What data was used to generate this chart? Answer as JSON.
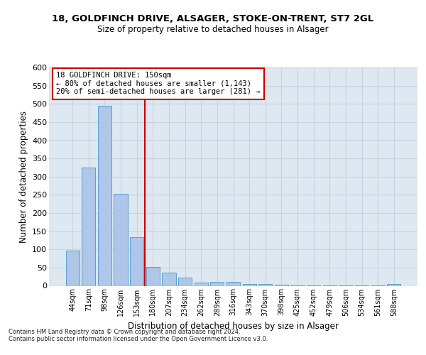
{
  "title1": "18, GOLDFINCH DRIVE, ALSAGER, STOKE-ON-TRENT, ST7 2GL",
  "title2": "Size of property relative to detached houses in Alsager",
  "xlabel": "Distribution of detached houses by size in Alsager",
  "ylabel": "Number of detached properties",
  "categories": [
    "44sqm",
    "71sqm",
    "98sqm",
    "126sqm",
    "153sqm",
    "180sqm",
    "207sqm",
    "234sqm",
    "262sqm",
    "289sqm",
    "316sqm",
    "343sqm",
    "370sqm",
    "398sqm",
    "425sqm",
    "452sqm",
    "479sqm",
    "506sqm",
    "534sqm",
    "561sqm",
    "588sqm"
  ],
  "values": [
    97,
    325,
    495,
    252,
    134,
    52,
    36,
    23,
    9,
    11,
    11,
    5,
    5,
    2,
    1,
    1,
    1,
    1,
    1,
    1,
    5
  ],
  "bar_color": "#aec6e8",
  "bar_edge_color": "#5a9fd4",
  "redline_x": 4.5,
  "annotation_text": "18 GOLDFINCH DRIVE: 150sqm\n← 80% of detached houses are smaller (1,143)\n20% of semi-detached houses are larger (281) →",
  "annotation_box_color": "#ffffff",
  "annotation_box_edge": "#cc0000",
  "redline_color": "#cc0000",
  "grid_color": "#c8d4e0",
  "background_color": "#dde8f0",
  "footer_text": "Contains HM Land Registry data © Crown copyright and database right 2024.\nContains public sector information licensed under the Open Government Licence v3.0.",
  "ylim": [
    0,
    600
  ],
  "yticks": [
    0,
    50,
    100,
    150,
    200,
    250,
    300,
    350,
    400,
    450,
    500,
    550,
    600
  ]
}
